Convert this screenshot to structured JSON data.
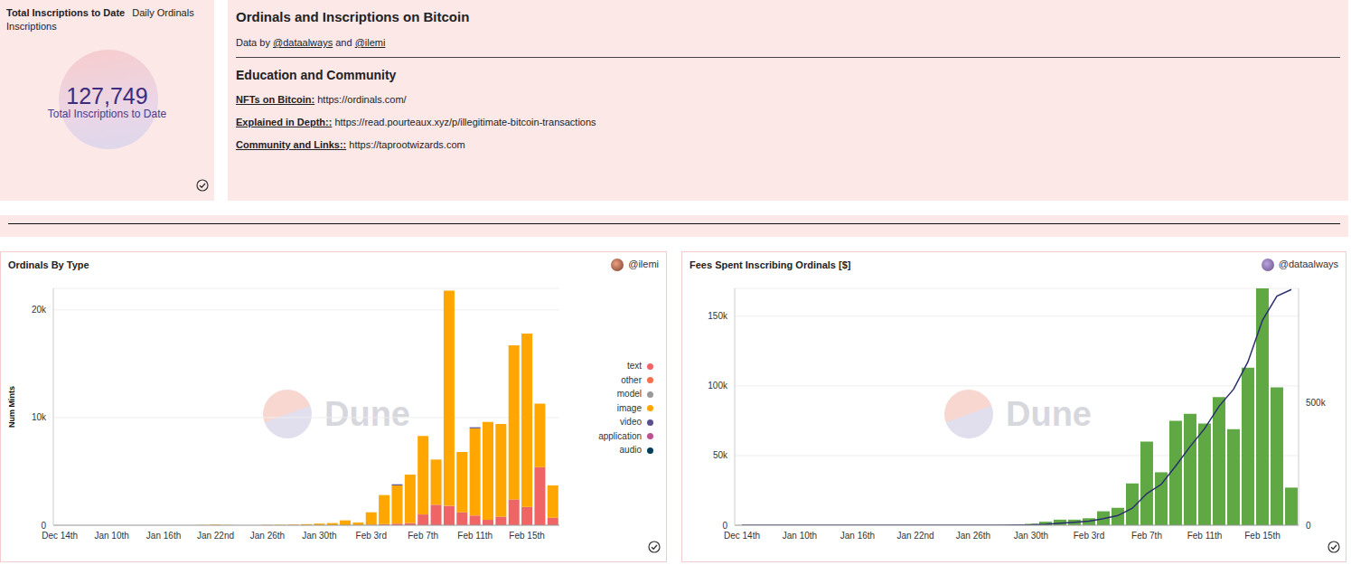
{
  "watermark": "Dune",
  "counter": {
    "tabs": [
      "Total Inscriptions to Date",
      "Daily Ordinals Inscriptions"
    ],
    "value": "127,749",
    "label": "Total Inscriptions to Date"
  },
  "text_panel": {
    "title": "Ordinals and Inscriptions on Bitcoin",
    "byline": {
      "prefix": "Data by",
      "authors": [
        "@dataalways",
        "@ilemi"
      ],
      "joiner": "and"
    },
    "heading": "Education and Community",
    "links": [
      {
        "label": "NFTs on Bitcoin:",
        "url": "https://ordinals.com/"
      },
      {
        "label": "Explained in Depth::",
        "url": "https://read.pourteaux.xyz/p/illegitimate-bitcoin-transactions"
      },
      {
        "label": "Community and Links::",
        "url": "https://taprootwizards.com"
      }
    ]
  },
  "chart_data": [
    {
      "type": "bar",
      "stacked": true,
      "title": "Ordinals By Type",
      "author": "@ilemi",
      "y_label": "Num Mints",
      "grid": true,
      "legend": "right",
      "categories": [
        "Dec 14th",
        null,
        null,
        null,
        "Jan 10th",
        null,
        null,
        null,
        "Jan 16th",
        null,
        null,
        null,
        "Jan 22nd",
        null,
        null,
        null,
        "Jan 26th",
        null,
        null,
        null,
        "Jan 30th",
        null,
        null,
        null,
        "Feb 3rd",
        null,
        null,
        null,
        "Feb 7th",
        null,
        null,
        null,
        "Feb 11th",
        null,
        null,
        null,
        "Feb 15th",
        null,
        null
      ],
      "ylim": [
        0,
        22000
      ],
      "yticks": [
        0,
        {
          "value": 10000,
          "label": "10k"
        },
        {
          "value": 20000,
          "label": "20k"
        }
      ],
      "series": [
        {
          "name": "text",
          "color": "#ef6565",
          "values": [
            0,
            0,
            0,
            0,
            0,
            0,
            0,
            0,
            0,
            0,
            0,
            0,
            0,
            0,
            0,
            0,
            0,
            0,
            0,
            0,
            0,
            0,
            0,
            0,
            50,
            100,
            150,
            200,
            1000,
            1900,
            1800,
            1200,
            900,
            500,
            800,
            2400,
            1700,
            5400,
            700
          ]
        },
        {
          "name": "other",
          "color": "#f2704a",
          "values": [
            0,
            0,
            0,
            0,
            0,
            0,
            0,
            0,
            0,
            0,
            0,
            0,
            0,
            0,
            0,
            0,
            0,
            0,
            0,
            0,
            0,
            0,
            0,
            0,
            0,
            0,
            0,
            0,
            0,
            0,
            0,
            0,
            0,
            0,
            0,
            0,
            0,
            0,
            0
          ]
        },
        {
          "name": "model",
          "color": "#9a9a9a",
          "values": [
            0,
            0,
            0,
            0,
            0,
            0,
            0,
            0,
            0,
            0,
            0,
            0,
            0,
            0,
            0,
            0,
            0,
            0,
            0,
            0,
            0,
            0,
            0,
            0,
            0,
            0,
            0,
            0,
            0,
            0,
            0,
            0,
            0,
            0,
            0,
            0,
            0,
            0,
            0
          ]
        },
        {
          "name": "image",
          "color": "#ffa600",
          "values": [
            0,
            0,
            0,
            0,
            0,
            0,
            0,
            0,
            0,
            0,
            0,
            20,
            60,
            20,
            0,
            0,
            30,
            40,
            60,
            100,
            150,
            200,
            450,
            250,
            1150,
            2700,
            3550,
            4500,
            7300,
            4200,
            20000,
            5600,
            8100,
            9100,
            8600,
            14300,
            16100,
            5900,
            3000
          ]
        },
        {
          "name": "video",
          "color": "#58508d",
          "values": [
            0,
            0,
            0,
            0,
            0,
            0,
            0,
            0,
            0,
            0,
            0,
            0,
            0,
            0,
            0,
            0,
            0,
            0,
            0,
            0,
            0,
            0,
            0,
            0,
            0,
            0,
            100,
            0,
            0,
            0,
            0,
            0,
            100,
            0,
            0,
            0,
            0,
            0,
            0
          ]
        },
        {
          "name": "application",
          "color": "#bc5090",
          "values": [
            0,
            0,
            0,
            0,
            0,
            0,
            0,
            0,
            0,
            0,
            0,
            0,
            0,
            0,
            0,
            0,
            0,
            0,
            0,
            0,
            0,
            0,
            0,
            0,
            0,
            0,
            0,
            0,
            0,
            0,
            0,
            0,
            0,
            0,
            0,
            0,
            0,
            0,
            0
          ]
        },
        {
          "name": "audio",
          "color": "#003f5c",
          "values": [
            0,
            0,
            0,
            0,
            0,
            0,
            0,
            0,
            0,
            0,
            0,
            0,
            0,
            0,
            0,
            0,
            0,
            0,
            0,
            0,
            0,
            0,
            0,
            0,
            0,
            0,
            0,
            0,
            0,
            0,
            0,
            0,
            0,
            0,
            0,
            0,
            0,
            0,
            0
          ]
        }
      ]
    },
    {
      "type": "bar",
      "title": "Fees Spent Inscribing Ordinals [$]",
      "author": "@dataalways",
      "grid": true,
      "categories": [
        "Dec 14th",
        null,
        null,
        null,
        "Jan 10th",
        null,
        null,
        null,
        "Jan 16th",
        null,
        null,
        null,
        "Jan 22nd",
        null,
        null,
        null,
        "Jan 26th",
        null,
        null,
        null,
        "Jan 30th",
        null,
        null,
        null,
        "Feb 3rd",
        null,
        null,
        null,
        "Feb 7th",
        null,
        null,
        null,
        "Feb 11th",
        null,
        null,
        null,
        "Feb 15th",
        null,
        null
      ],
      "ylim": [
        0,
        170000
      ],
      "yticks": [
        0,
        {
          "value": 50000,
          "label": "50k"
        },
        {
          "value": 100000,
          "label": "100k"
        },
        {
          "value": 150000,
          "label": "150k"
        }
      ],
      "y2lim": [
        0,
        970000
      ],
      "y2ticks": [
        0,
        {
          "value": 500000,
          "label": "500k"
        }
      ],
      "series": [
        {
          "type": "bar",
          "color": "#5fa844",
          "values": [
            0,
            0,
            0,
            0,
            0,
            0,
            0,
            0,
            0,
            0,
            0,
            0,
            0,
            0,
            0,
            0,
            0,
            0,
            0,
            500,
            1000,
            2500,
            4000,
            4000,
            5000,
            10000,
            12500,
            30000,
            60000,
            38000,
            75000,
            80000,
            73000,
            92000,
            69000,
            113000,
            170000,
            99000,
            27000
          ]
        },
        {
          "type": "line",
          "axis": "y2",
          "color": "#2b2e6e",
          "values": [
            0,
            0,
            0,
            0,
            0,
            0,
            0,
            0,
            0,
            0,
            0,
            0,
            0,
            0,
            0,
            0,
            0,
            0,
            0,
            500,
            1500,
            4000,
            8000,
            12000,
            17000,
            27000,
            39500,
            69500,
            129500,
            167500,
            242500,
            322500,
            395500,
            487500,
            556500,
            669500,
            839500,
            938500,
            965500
          ]
        }
      ]
    }
  ]
}
